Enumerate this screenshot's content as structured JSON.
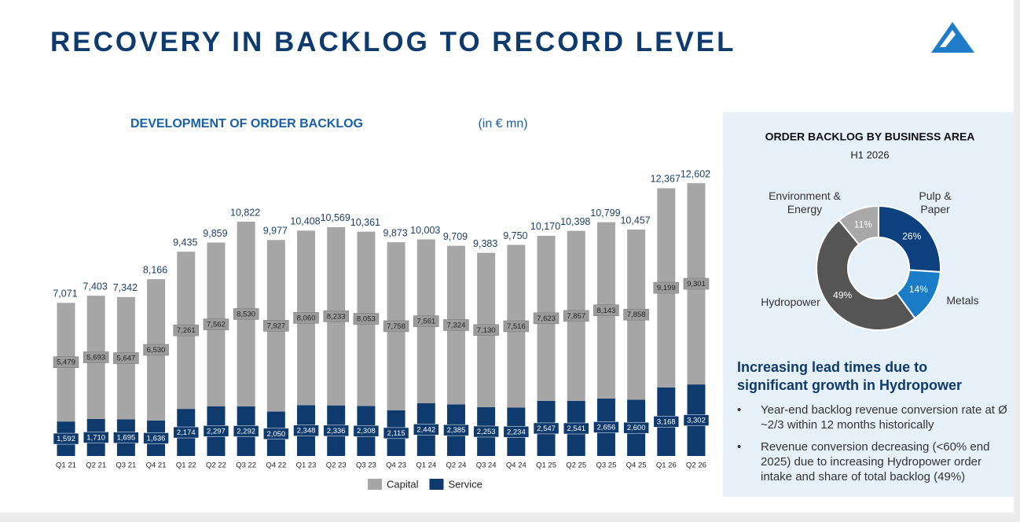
{
  "slide_title": "RECOVERY IN BACKLOG TO RECORD LEVEL",
  "chart_data": [
    {
      "type": "bar",
      "stacked": true,
      "title": "DEVELOPMENT OF ORDER BACKLOG",
      "unit": "(in € mn)",
      "categories": [
        "Q1 21",
        "Q2 21",
        "Q3 21",
        "Q4 21",
        "Q1 22",
        "Q2 22",
        "Q3 22",
        "Q4 22",
        "Q1 23",
        "Q2 23",
        "Q3 23",
        "Q4 23",
        "Q1 24",
        "Q2 24",
        "Q3 24",
        "Q4 24",
        "Q1 25",
        "Q2 25",
        "Q3 25",
        "Q4 25",
        "Q1 26",
        "Q2 26"
      ],
      "series": [
        {
          "name": "Service",
          "color": "#0e3a6e",
          "values": [
            1592,
            1710,
            1695,
            1636,
            2174,
            2297,
            2292,
            2050,
            2348,
            2336,
            2308,
            2115,
            2442,
            2385,
            2253,
            2234,
            2547,
            2541,
            2656,
            2600,
            3168,
            3302
          ],
          "value_labels": [
            "1,592",
            "1,710",
            "1,695",
            "1,636",
            "2,174",
            "2,297",
            "2,292",
            "2,050",
            "2,348",
            "2,336",
            "2,308",
            "2,115",
            "2,442",
            "2,385",
            "2,253",
            "2,234",
            "2,547",
            "2,541",
            "2,656",
            "2,600",
            "3,168",
            "3,302"
          ]
        },
        {
          "name": "Capital",
          "color": "#a6a6a6",
          "values": [
            5479,
            5693,
            5647,
            6530,
            7261,
            7562,
            8530,
            7927,
            8060,
            8233,
            8053,
            7758,
            7561,
            7324,
            7130,
            7516,
            7623,
            7857,
            8143,
            7858,
            9199,
            9301
          ],
          "value_labels": [
            "5,479",
            "5,693",
            "5,647",
            "6,530",
            "7,261",
            "7,562",
            "8,530",
            "7,927",
            "8,060",
            "8,233",
            "8,053",
            "7,758",
            "7,561",
            "7,324",
            "7,130",
            "7,516",
            "7,623",
            "7,857",
            "8,143",
            "7,858",
            "9,199",
            "9,301"
          ]
        }
      ],
      "totals": {
        "values": [
          7071,
          7403,
          7342,
          8166,
          9435,
          9859,
          10822,
          9977,
          10408,
          10569,
          10361,
          9873,
          10003,
          9709,
          9383,
          9750,
          10170,
          10398,
          10799,
          10457,
          12367,
          12602
        ],
        "value_labels": [
          "7,071",
          "7,403",
          "7,342",
          "8,166",
          "9,435",
          "9,859",
          "10,822",
          "9,977",
          "10,408",
          "10,569",
          "10,361",
          "9,873",
          "10,003",
          "9,709",
          "9,383",
          "9,750",
          "10,170",
          "10,398",
          "10,799",
          "10,457",
          "12,367",
          "12,602"
        ]
      },
      "ylim": [
        0,
        13000
      ]
    },
    {
      "type": "pie",
      "donut": true,
      "title": "ORDER BACKLOG BY BUSINESS AREA",
      "subtitle": "H1 2026",
      "categories": [
        "Pulp & Paper",
        "Metals",
        "Hydropower",
        "Environment & Energy"
      ],
      "values": [
        26,
        14,
        49,
        11
      ],
      "value_labels": [
        "26%",
        "14%",
        "49%",
        "11%"
      ],
      "colors": [
        "#0e3f7e",
        "#1a7bc7",
        "#555555",
        "#a8a8a8"
      ]
    }
  ],
  "panel": {
    "heading": "Increasing lead times due to significant growth in Hydropower",
    "bullets": [
      "Year-end backlog revenue conversion rate at Ø ~2/3 within 12 months historically",
      "Revenue conversion decreasing (<60% end 2025) due to increasing Hydropower order intake and share of total backlog (49%)"
    ]
  }
}
